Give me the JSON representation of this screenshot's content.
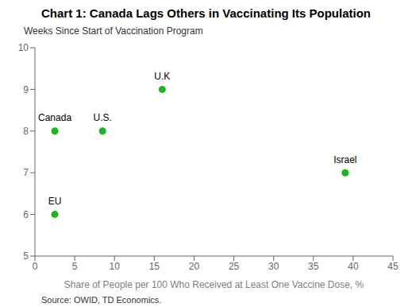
{
  "chart_data": {
    "type": "scatter",
    "title": "Chart 1: Canada Lags Others in Vaccinating Its Population",
    "ylabel": "Weeks Since Start of Vaccination Program",
    "xlabel": "Share of People per 100 Who Received at Least One Vaccine Dose, %",
    "source": "Source:  OWID,  TD Economics.",
    "labels": [
      "Canada",
      "U.S.",
      "U.K",
      "EU",
      "Israel"
    ],
    "x": [
      2.5,
      8.5,
      16,
      2.5,
      39
    ],
    "values": [
      8,
      8,
      9,
      6,
      7
    ],
    "color": "#18b818",
    "xlim": [
      0,
      45
    ],
    "ylim": [
      5,
      10
    ],
    "xticks": [
      0,
      5,
      10,
      15,
      20,
      25,
      30,
      35,
      40,
      45
    ],
    "yticks": [
      5,
      6,
      7,
      8,
      9,
      10
    ],
    "grid": false
  }
}
